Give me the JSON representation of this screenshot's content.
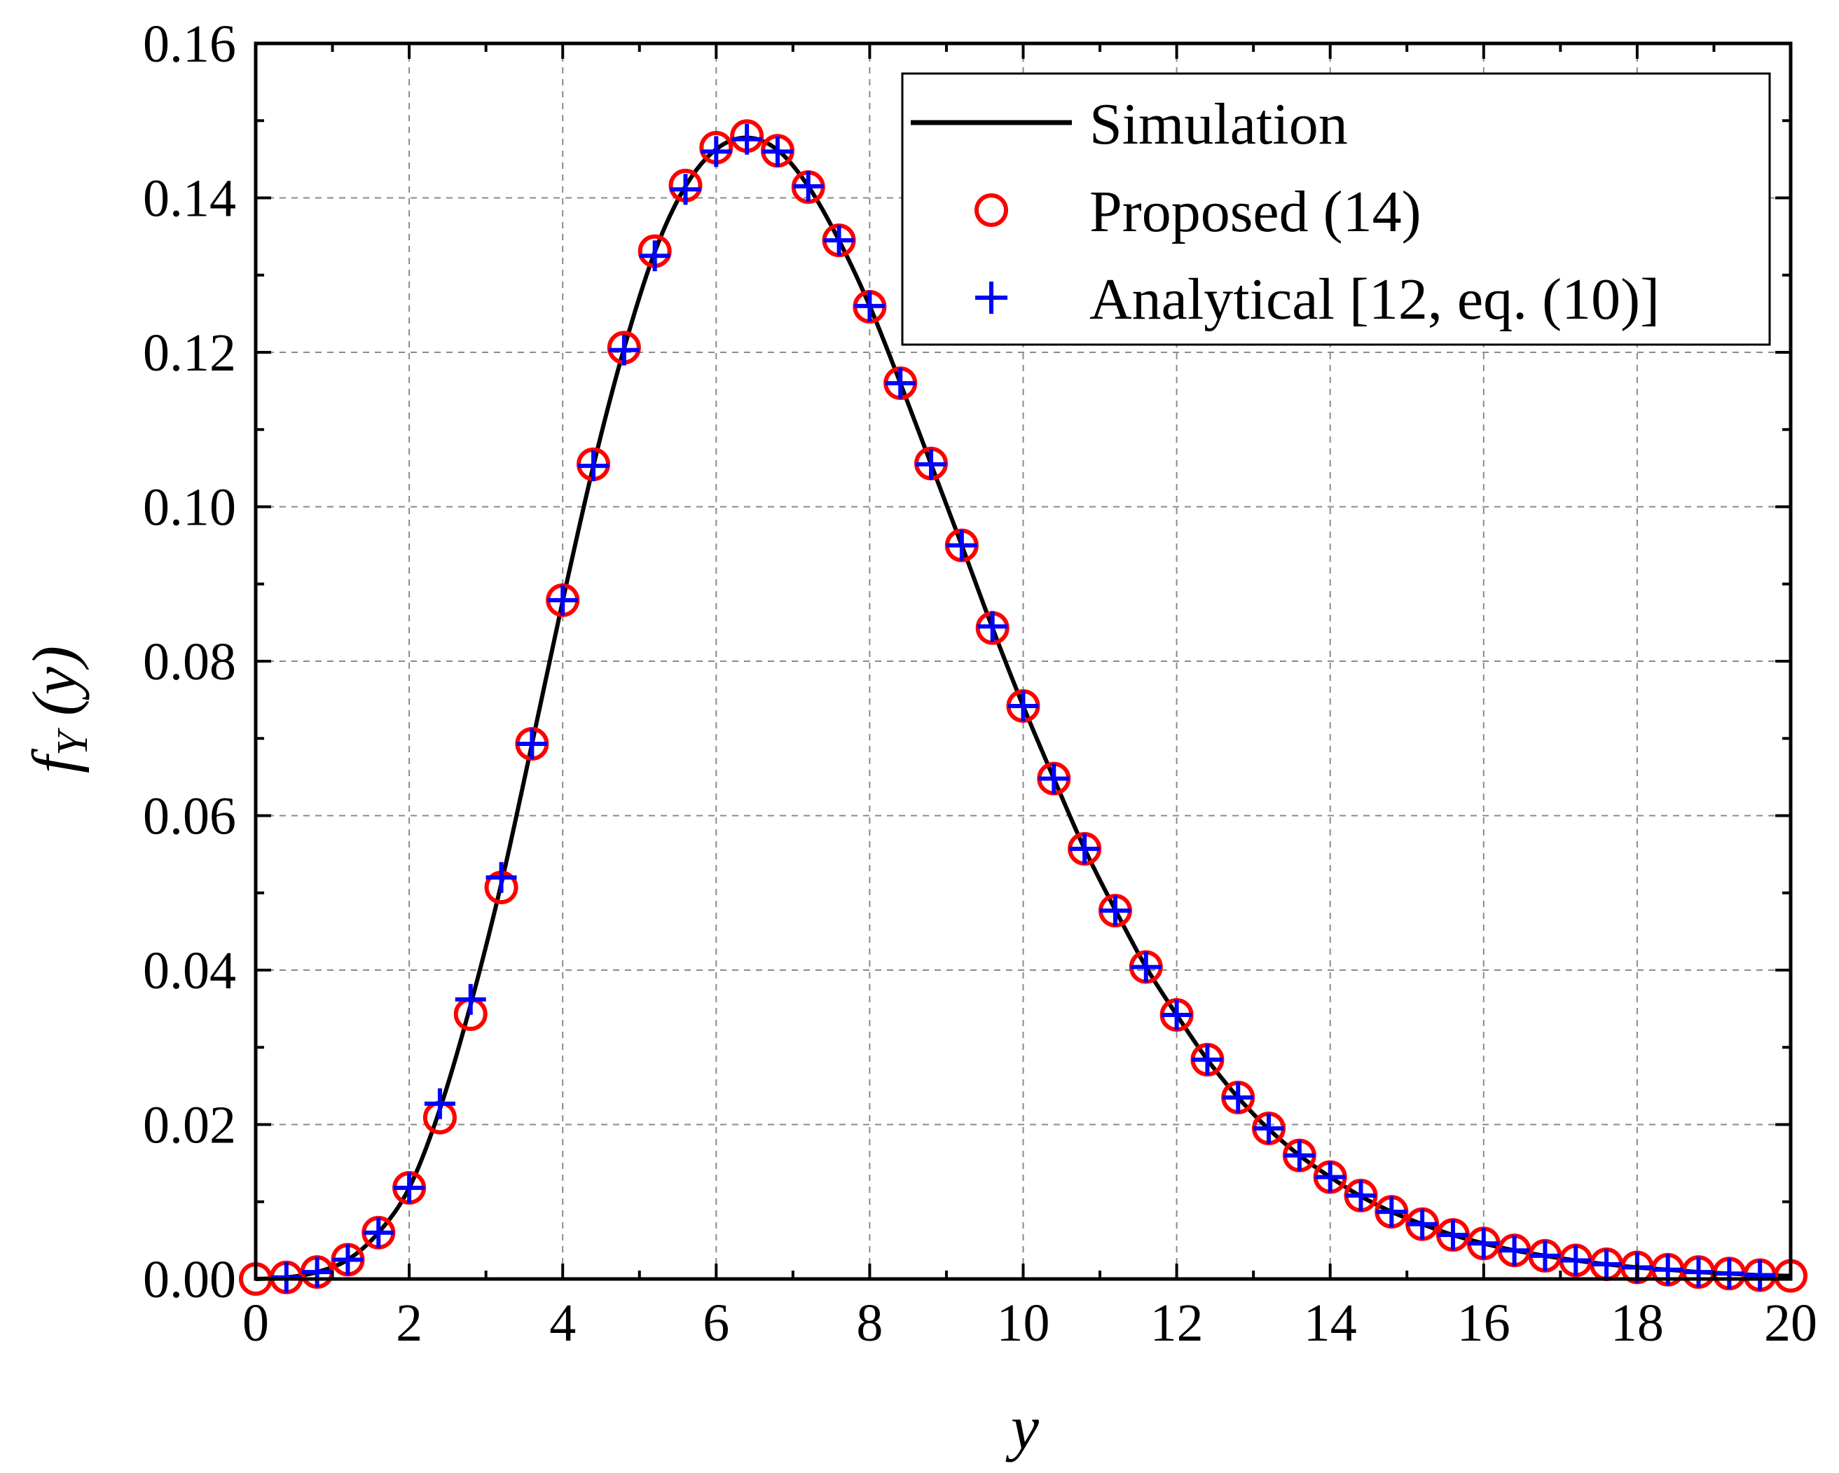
{
  "chart_data": {
    "type": "line",
    "xlabel": "y",
    "ylabel_main": "f",
    "ylabel_sub": "Y",
    "ylabel_arg": " (y)",
    "xlim": [
      0,
      20
    ],
    "ylim": [
      0,
      0.16
    ],
    "xticks": [
      0,
      2,
      4,
      6,
      8,
      10,
      12,
      14,
      16,
      18,
      20
    ],
    "yticks": [
      0.0,
      0.02,
      0.04,
      0.06,
      0.08,
      0.1,
      0.12,
      0.14,
      0.16
    ],
    "xtick_labels": [
      "0",
      "2",
      "4",
      "6",
      "8",
      "10",
      "12",
      "14",
      "16",
      "18",
      "20"
    ],
    "ytick_labels": [
      "0.00",
      "0.02",
      "0.04",
      "0.06",
      "0.08",
      "0.10",
      "0.12",
      "0.14",
      "0.16"
    ],
    "grid": true,
    "legend_position": "top-right",
    "series": [
      {
        "name": "Simulation",
        "style": "line",
        "color": "#000000",
        "x": [
          0,
          0.4,
          0.8,
          1.2,
          1.6,
          2.0,
          2.4,
          2.8,
          3.2,
          3.6,
          4.0,
          4.4,
          4.8,
          5.2,
          5.6,
          6.0,
          6.4,
          6.8,
          7.2,
          7.6,
          8.0,
          8.4,
          8.8,
          9.2,
          9.6,
          10.0,
          10.4,
          10.8,
          11.2,
          11.6,
          12.0,
          12.4,
          12.8,
          13.2,
          13.6,
          14.0,
          14.4,
          14.8,
          15.2,
          15.6,
          16.0,
          16.4,
          16.8,
          17.2,
          17.6,
          18.0,
          18.4,
          18.8,
          19.2,
          19.6,
          20.0
        ],
        "y": [
          0.0,
          0.0002,
          0.0009,
          0.0025,
          0.006,
          0.0118,
          0.022,
          0.0355,
          0.0512,
          0.0693,
          0.0878,
          0.1053,
          0.1205,
          0.133,
          0.1415,
          0.1463,
          0.1478,
          0.1462,
          0.1415,
          0.1345,
          0.126,
          0.116,
          0.1055,
          0.095,
          0.0843,
          0.0742,
          0.0648,
          0.0557,
          0.0478,
          0.0404,
          0.0342,
          0.0284,
          0.0235,
          0.0194,
          0.016,
          0.0132,
          0.0107,
          0.0087,
          0.0071,
          0.0057,
          0.0046,
          0.0037,
          0.003,
          0.0024,
          0.0019,
          0.0015,
          0.0012,
          0.0009,
          0.0007,
          0.0005,
          0.0004
        ]
      },
      {
        "name": "Proposed (14)",
        "style": "circle",
        "color": "#ff0000",
        "x": [
          0,
          0.4,
          0.8,
          1.2,
          1.6,
          2.0,
          2.4,
          2.8,
          3.2,
          3.6,
          4.0,
          4.4,
          4.8,
          5.2,
          5.6,
          6.0,
          6.4,
          6.8,
          7.2,
          7.6,
          8.0,
          8.4,
          8.8,
          9.2,
          9.6,
          10.0,
          10.4,
          10.8,
          11.2,
          11.6,
          12.0,
          12.4,
          12.8,
          13.2,
          13.6,
          14.0,
          14.4,
          14.8,
          15.2,
          15.6,
          16.0,
          16.4,
          16.8,
          17.2,
          17.6,
          18.0,
          18.4,
          18.8,
          19.2,
          19.6,
          20.0
        ],
        "y": [
          0.0,
          0.0002,
          0.0009,
          0.0025,
          0.006,
          0.0118,
          0.0209,
          0.0343,
          0.0507,
          0.0693,
          0.0879,
          0.1055,
          0.1206,
          0.1331,
          0.1416,
          0.1465,
          0.148,
          0.1461,
          0.1414,
          0.1345,
          0.1259,
          0.116,
          0.1056,
          0.095,
          0.0843,
          0.0742,
          0.0648,
          0.0557,
          0.0477,
          0.0404,
          0.0342,
          0.0284,
          0.0235,
          0.0195,
          0.016,
          0.0132,
          0.0108,
          0.0087,
          0.0071,
          0.0057,
          0.0046,
          0.0037,
          0.003,
          0.0024,
          0.0019,
          0.0015,
          0.0012,
          0.0009,
          0.0007,
          0.0005,
          0.0004
        ]
      },
      {
        "name": "Analytical [12, eq. (10)]",
        "style": "plus",
        "color": "#0000ff",
        "x": [
          0.4,
          0.8,
          1.2,
          1.6,
          2.0,
          2.4,
          2.8,
          3.2,
          3.6,
          4.0,
          4.4,
          4.8,
          5.2,
          5.6,
          6.0,
          6.4,
          6.8,
          7.2,
          7.6,
          8.0,
          8.4,
          8.8,
          9.2,
          9.6,
          10.0,
          10.4,
          10.8,
          11.2,
          11.6,
          12.0,
          12.4,
          12.8,
          13.2,
          13.6,
          14.0,
          14.4,
          14.8,
          15.2,
          15.6,
          16.0,
          16.4,
          16.8,
          17.2,
          17.6,
          18.0,
          18.4,
          18.8,
          19.2,
          19.6
        ],
        "y": [
          0.0002,
          0.0009,
          0.0025,
          0.006,
          0.0118,
          0.0227,
          0.0362,
          0.052,
          0.0693,
          0.0879,
          0.1053,
          0.1203,
          0.1325,
          0.1411,
          0.146,
          0.1476,
          0.146,
          0.1415,
          0.1345,
          0.126,
          0.116,
          0.1055,
          0.095,
          0.0845,
          0.0742,
          0.0648,
          0.0557,
          0.0477,
          0.0404,
          0.0342,
          0.0284,
          0.0235,
          0.0195,
          0.016,
          0.0132,
          0.0108,
          0.0087,
          0.0071,
          0.0057,
          0.0046,
          0.0037,
          0.003,
          0.0024,
          0.0019,
          0.0015,
          0.0012,
          0.0009,
          0.0007,
          0.0005
        ]
      }
    ]
  }
}
